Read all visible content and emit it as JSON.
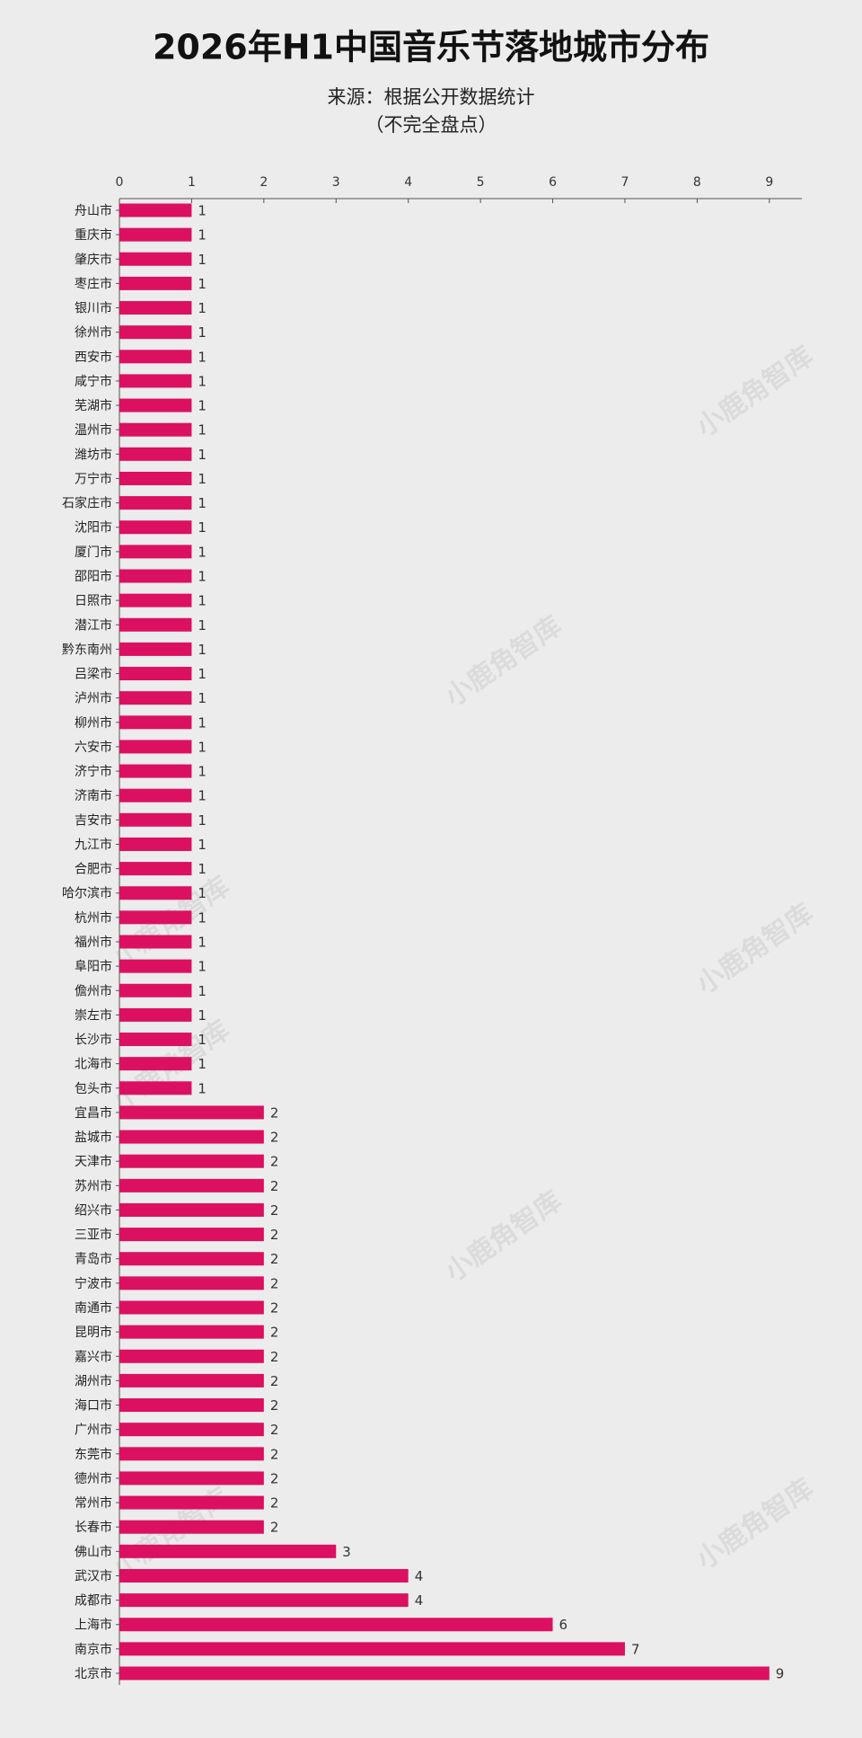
{
  "chart_data": {
    "type": "bar",
    "orientation": "horizontal",
    "title": "2026年H1中国音乐节落地城市分布",
    "subtitle": [
      "来源：根据公开数据统计",
      "（不完全盘点）"
    ],
    "watermark": "小鹿角智库",
    "color": "#dc1060",
    "categories": [
      "舟山市",
      "重庆市",
      "肇庆市",
      "枣庄市",
      "银川市",
      "徐州市",
      "西安市",
      "咸宁市",
      "芜湖市",
      "温州市",
      "潍坊市",
      "万宁市",
      "石家庄市",
      "沈阳市",
      "厦门市",
      "邵阳市",
      "日照市",
      "潜江市",
      "黔东南州",
      "吕梁市",
      "泸州市",
      "柳州市",
      "六安市",
      "济宁市",
      "济南市",
      "吉安市",
      "九江市",
      "合肥市",
      "哈尔滨市",
      "杭州市",
      "福州市",
      "阜阳市",
      "儋州市",
      "崇左市",
      "长沙市",
      "北海市",
      "包头市",
      "宜昌市",
      "盐城市",
      "天津市",
      "苏州市",
      "绍兴市",
      "三亚市",
      "青岛市",
      "宁波市",
      "南通市",
      "昆明市",
      "嘉兴市",
      "湖州市",
      "海口市",
      "广州市",
      "东莞市",
      "德州市",
      "常州市",
      "长春市",
      "佛山市",
      "武汉市",
      "成都市",
      "上海市",
      "南京市",
      "北京市"
    ],
    "values": [
      1,
      1,
      1,
      1,
      1,
      1,
      1,
      1,
      1,
      1,
      1,
      1,
      1,
      1,
      1,
      1,
      1,
      1,
      1,
      1,
      1,
      1,
      1,
      1,
      1,
      1,
      1,
      1,
      1,
      1,
      1,
      1,
      1,
      1,
      1,
      1,
      1,
      2,
      2,
      2,
      2,
      2,
      2,
      2,
      2,
      2,
      2,
      2,
      2,
      2,
      2,
      2,
      2,
      2,
      2,
      3,
      4,
      4,
      6,
      7,
      9
    ],
    "xlim": [
      0,
      9.45
    ],
    "xticks": [
      0,
      1,
      2,
      3,
      4,
      5,
      6,
      7,
      8,
      9
    ],
    "grid": false
  }
}
